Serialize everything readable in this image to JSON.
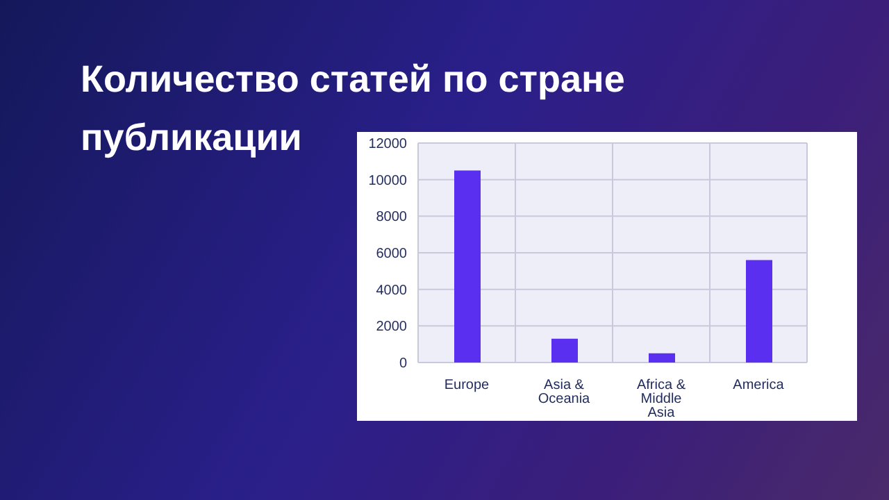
{
  "chart_data": {
    "type": "bar",
    "title": "Количество статей по стране публикации",
    "categories": [
      "Europe",
      "Asia & Oceania",
      "Africa & Middle Asia",
      "America"
    ],
    "values": [
      10500,
      1300,
      500,
      5600
    ],
    "color": "#5b2ff0",
    "ylim": [
      0,
      12000
    ],
    "yticks": [
      0,
      2000,
      4000,
      6000,
      8000,
      10000,
      12000
    ],
    "grid": true
  }
}
